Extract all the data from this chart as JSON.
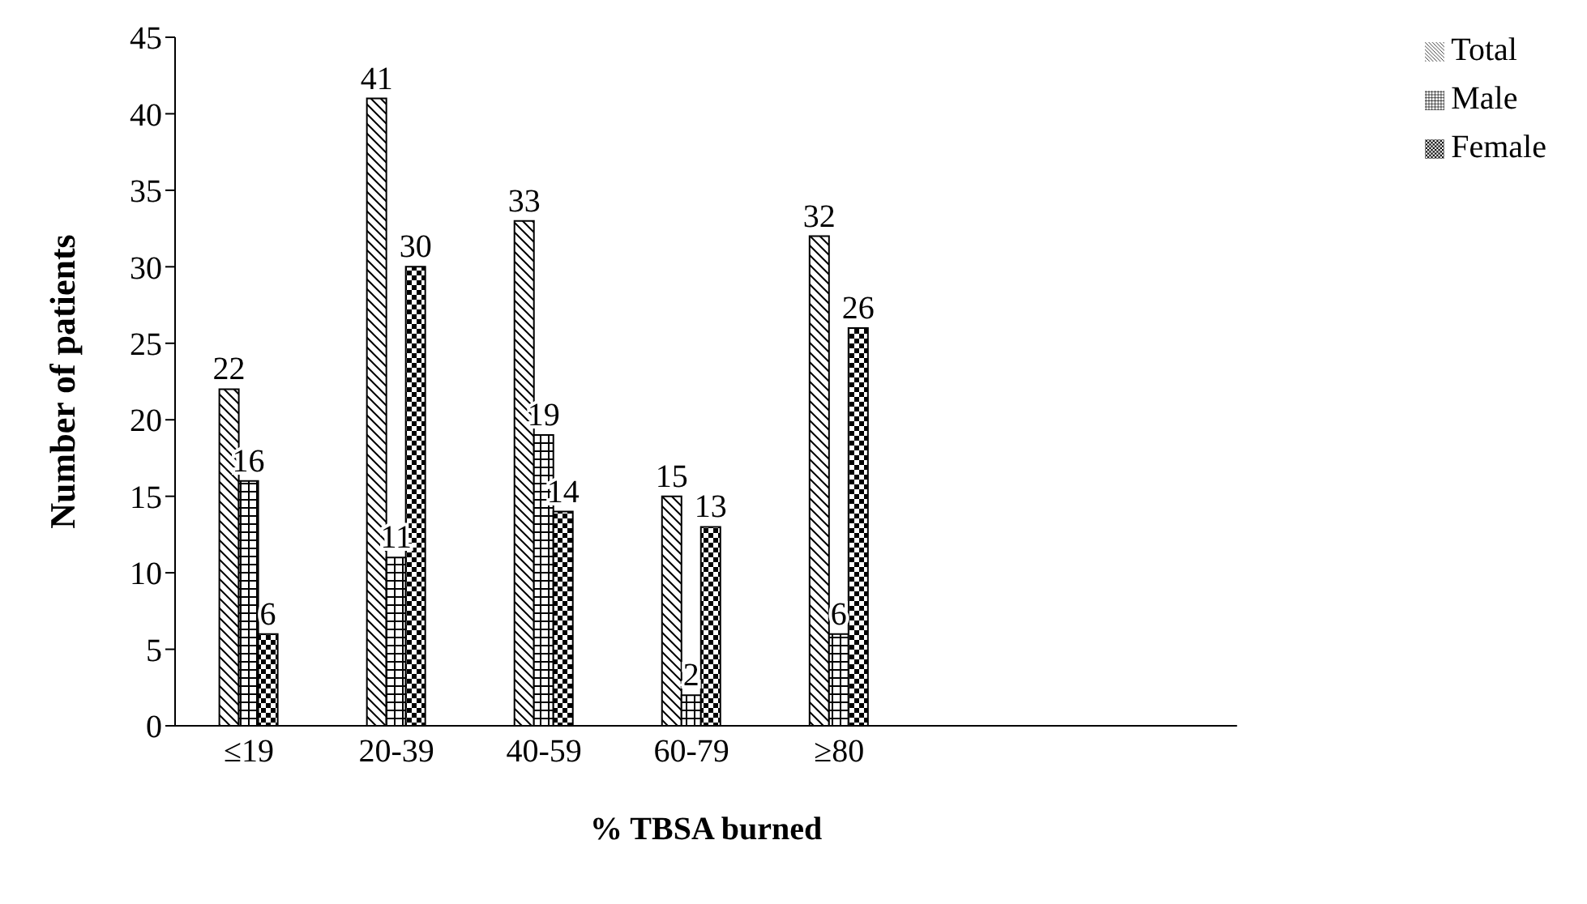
{
  "chart_data": {
    "type": "bar",
    "xlabel": "% TBSA burned",
    "ylabel": "Number of patients",
    "categories": [
      "≤19",
      "20-39",
      "40-59",
      "60-79",
      "≥80"
    ],
    "series": [
      {
        "name": "Total",
        "color": "#000000",
        "values": [
          22,
          41,
          33,
          15,
          32
        ]
      },
      {
        "name": "Male",
        "color": "#000000",
        "values": [
          16,
          11,
          19,
          2,
          6
        ]
      },
      {
        "name": "Female",
        "color": "#000000",
        "values": [
          6,
          30,
          14,
          13,
          26
        ]
      }
    ],
    "ylim": [
      0,
      45
    ],
    "yticks": [
      0,
      5,
      10,
      15,
      20,
      25,
      30,
      35,
      40,
      45
    ],
    "data_labels": true,
    "grid": false,
    "legend": "top right"
  }
}
